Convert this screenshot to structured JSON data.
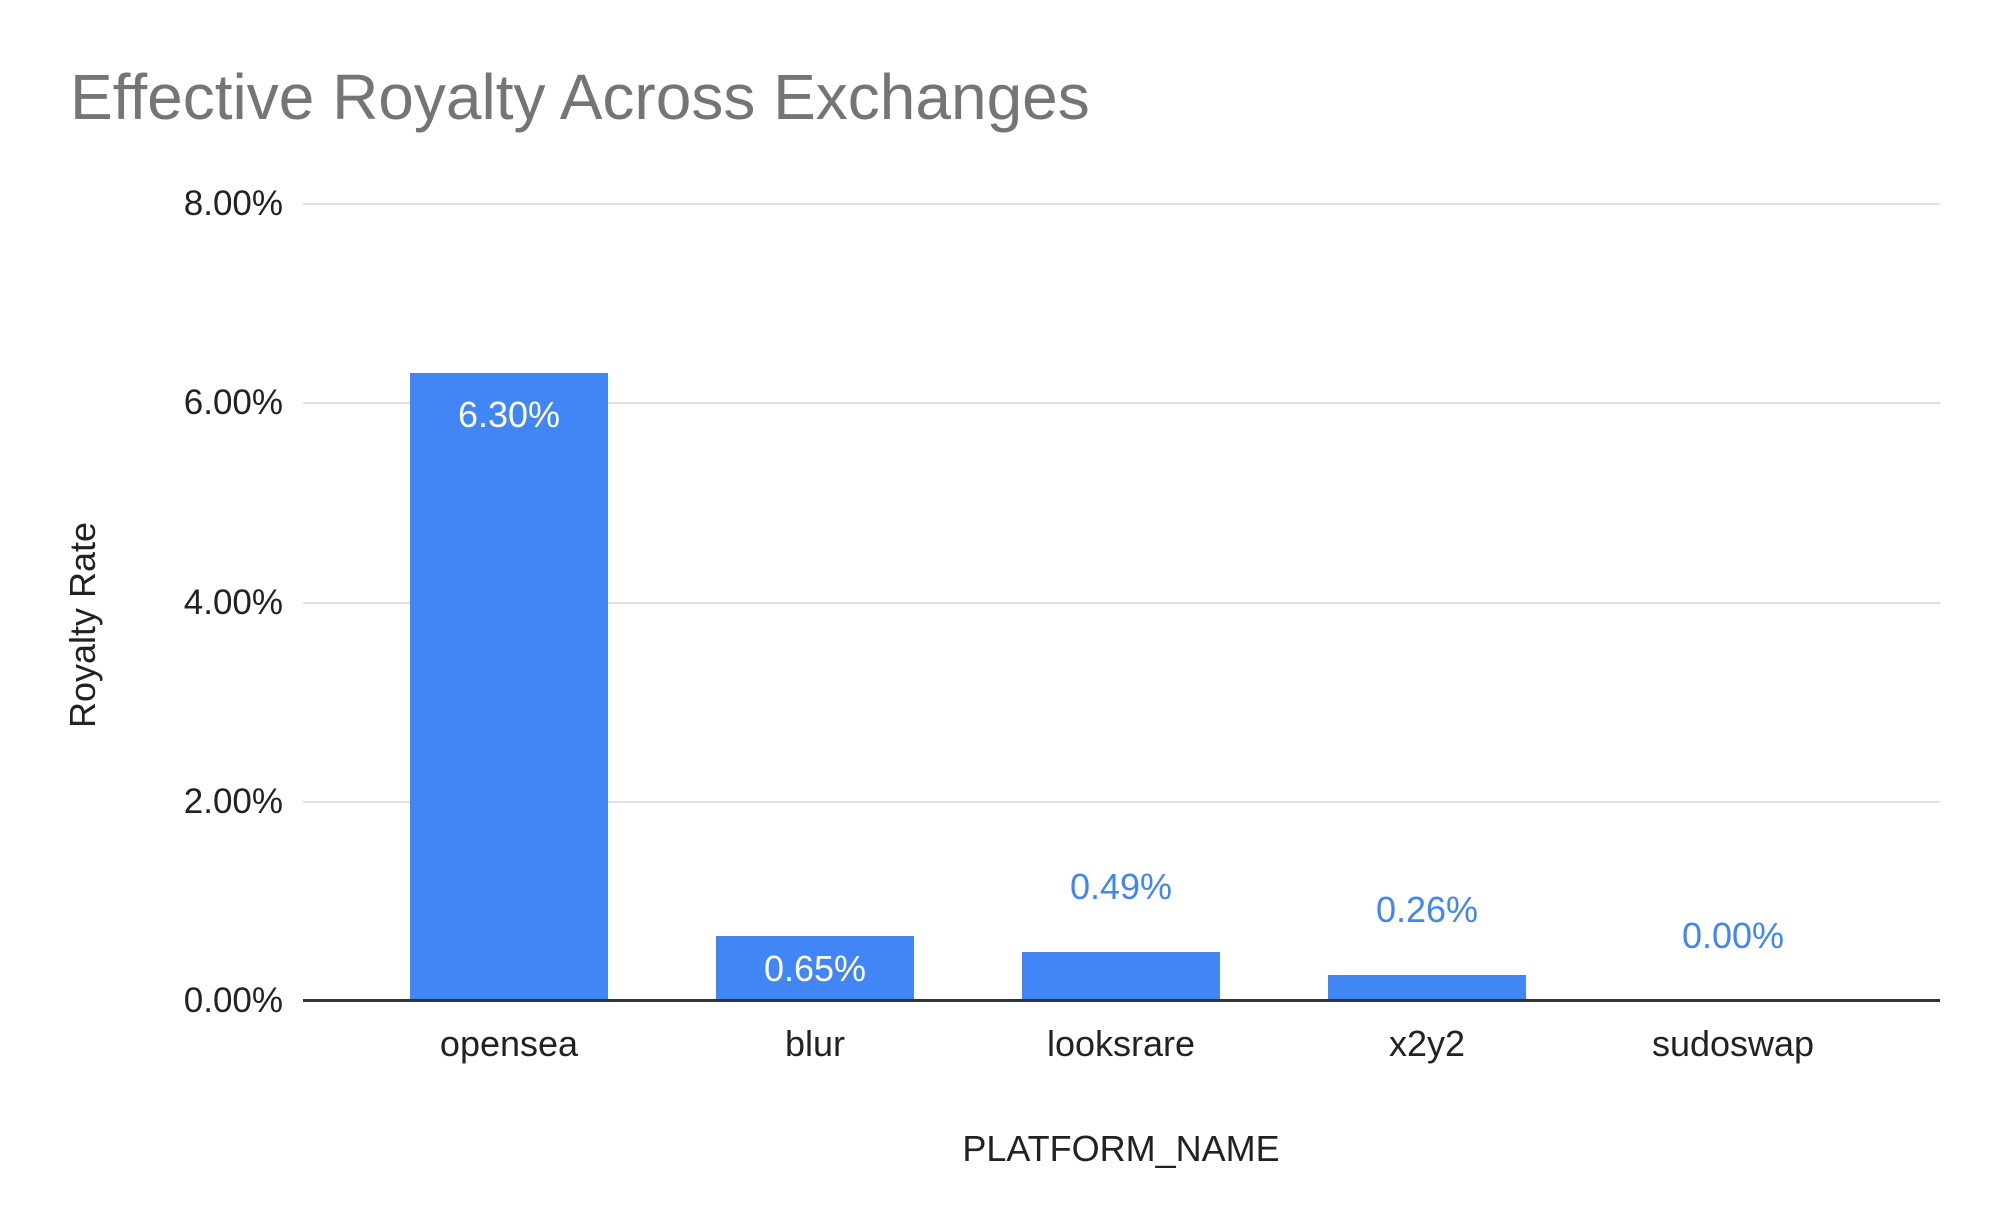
{
  "chart_data": {
    "type": "bar",
    "title": "Effective Royalty Across Exchanges",
    "xlabel": "PLATFORM_NAME",
    "ylabel": "Royalty Rate",
    "categories": [
      "opensea",
      "blur",
      "looksrare",
      "x2y2",
      "sudoswap"
    ],
    "values": [
      6.3,
      0.65,
      0.49,
      0.26,
      0.0
    ],
    "data_labels": [
      "6.30%",
      "0.65%",
      "0.49%",
      "0.26%",
      "0.00%"
    ],
    "y_ticks": [
      {
        "label": "8.00%",
        "value": 8
      },
      {
        "label": "6.00%",
        "value": 6
      },
      {
        "label": "4.00%",
        "value": 4
      },
      {
        "label": "2.00%",
        "value": 2
      },
      {
        "label": "0.00%",
        "value": 0
      }
    ],
    "ylim": [
      0,
      8
    ],
    "grid": true,
    "legend": "none",
    "colors": {
      "bar": "#4285f4",
      "label_inside": "#ffffff",
      "label_outside": "#4285f4",
      "title": "#757575",
      "axis_text": "#222222",
      "gridline": "#e0e0e0",
      "axis_line": "#333333"
    }
  }
}
